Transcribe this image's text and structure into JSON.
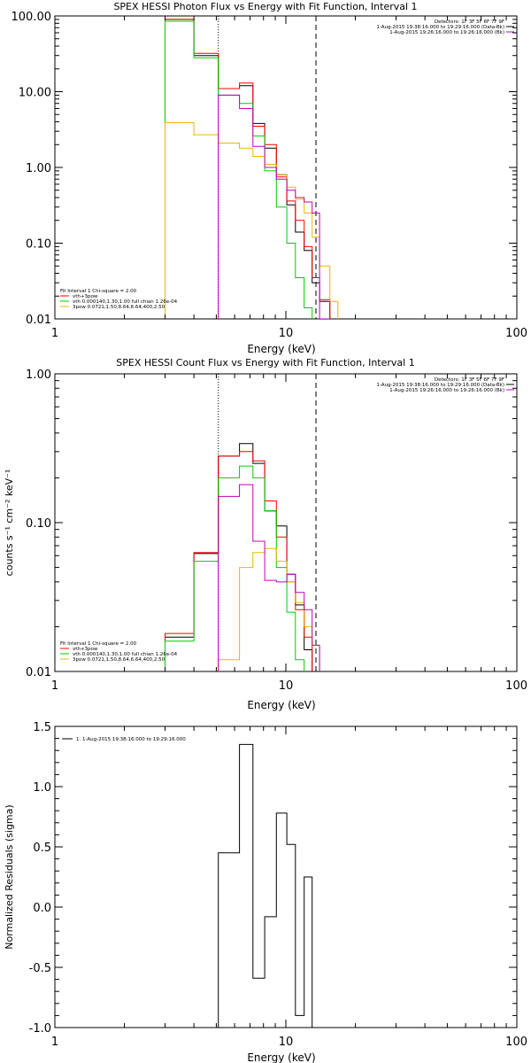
{
  "panels": [
    {
      "title": "SPEX HESSI Photon Flux vs Energy with Fit Function, Interval 1",
      "xlabel": "Energy (keV)",
      "ylabel": "",
      "xticks": [
        {
          "v": 1,
          "label": "1"
        },
        {
          "v": 10,
          "label": "10"
        },
        {
          "v": 100,
          "label": "100"
        }
      ],
      "yticks": [
        {
          "v": 0.01,
          "label": "0.01"
        },
        {
          "v": 0.1,
          "label": "0.10"
        },
        {
          "v": 1,
          "label": "1.00"
        },
        {
          "v": 10,
          "label": "10.00"
        },
        {
          "v": 100,
          "label": "100.00"
        }
      ],
      "legend_tr": [
        {
          "text": "Detectors: 1F 3F 5F 6F 7F 9F",
          "color": ""
        },
        {
          "text": "1-Aug-2015 19:38:16.000 to 19:29:16.000 (Data-Bk)",
          "color": "#000000"
        },
        {
          "text": "1-Aug-2015 19:26:16.000 to 19:26:16.000 (Bk)",
          "color": "#c000c0"
        }
      ],
      "legend_bl": [
        {
          "text": "Fit Interval 1    Chi-square = 2.00",
          "color": ""
        },
        {
          "text": "vth+3pow",
          "color": "#ff0000"
        },
        {
          "text": "vth 0.000140,1.30,1.00   full chian 1.26e-04",
          "color": "#00cc00"
        },
        {
          "text": "3pow 0.0721,1.50,8.64,6.64,400,2.50",
          "color": "#e6b800"
        }
      ]
    },
    {
      "title": "SPEX HESSI Count Flux vs Energy with Fit Function, Interval 1",
      "xlabel": "Energy (keV)",
      "ylabel": "counts s⁻¹ cm⁻² keV⁻¹",
      "xticks": [
        {
          "v": 1,
          "label": "1"
        },
        {
          "v": 10,
          "label": "10"
        },
        {
          "v": 100,
          "label": "100"
        }
      ],
      "yticks": [
        {
          "v": 0.01,
          "label": "0.01"
        },
        {
          "v": 0.1,
          "label": "0.10"
        },
        {
          "v": 1,
          "label": "1.00"
        }
      ],
      "legend_tr": [
        {
          "text": "Detectors: 1F 3F 5F 6F 7F 9F",
          "color": ""
        },
        {
          "text": "1-Aug-2015 19:38:16.000 to 19:29:16.000 (Data-Bk)",
          "color": "#000000"
        },
        {
          "text": "1-Aug-2015 19:26:16.000 to 19:26:16.000 (Bk)",
          "color": "#c000c0"
        }
      ],
      "legend_bl": [
        {
          "text": "Fit Interval 1    Chi-square = 2.00",
          "color": ""
        },
        {
          "text": "vth+3pow",
          "color": "#ff0000"
        },
        {
          "text": "vth 0.000140,1.30,1.00   full chian 1.26e-04",
          "color": "#00cc00"
        },
        {
          "text": "3pow 0.0721,1.50,8.64,6.64,400,2.50",
          "color": "#e6b800"
        }
      ]
    },
    {
      "title": "",
      "xlabel": "Energy (keV)",
      "ylabel": "Normalized Residuals (sigma)",
      "xticks": [
        {
          "v": 1,
          "label": "1"
        },
        {
          "v": 10,
          "label": "10"
        },
        {
          "v": 100,
          "label": "100"
        }
      ],
      "yticks": [
        {
          "v": -1,
          "label": "-1.0"
        },
        {
          "v": -0.5,
          "label": "-0.5"
        },
        {
          "v": 0,
          "label": "0.0"
        },
        {
          "v": 0.5,
          "label": "0.5"
        },
        {
          "v": 1,
          "label": "1.0"
        },
        {
          "v": 1.5,
          "label": "1.5"
        }
      ],
      "legend_tl": [
        {
          "text": "1.  1-Aug-2015 19:38:16.000 to 19:29:16.000",
          "color": "#000000"
        }
      ]
    }
  ],
  "chart_data": [
    {
      "type": "line",
      "title": "SPEX HESSI Photon Flux vs Energy with Fit Function, Interval 1",
      "xlabel": "Energy (keV)",
      "ylabel": "",
      "xscale": "log",
      "yscale": "log",
      "xlim": [
        1,
        100
      ],
      "ylim": [
        0.01,
        100
      ],
      "vlines": [
        {
          "x": 5.1,
          "style": "dotted",
          "color": "#000000"
        },
        {
          "x": 13.5,
          "style": "dashed",
          "color": "#000000"
        }
      ],
      "edges": [
        3.0,
        4.0,
        5.1,
        6.3,
        7.2,
        8.1,
        9.1,
        10.1,
        11.0,
        12.0,
        13.0,
        14.0,
        15.5,
        16.8
      ],
      "series": [
        {
          "name": "Data-Bk",
          "color": "#000000",
          "values": [
            90,
            30,
            11,
            12,
            3.8,
            1.8,
            0.8,
            0.32,
            0.14,
            0.08,
            0.03,
            0.017,
            null
          ]
        },
        {
          "name": "vth+3pow",
          "color": "#ff0000",
          "values": [
            90,
            32,
            11,
            13,
            3.5,
            2.0,
            0.75,
            0.36,
            0.2,
            0.09,
            0.035,
            0.018,
            null
          ]
        },
        {
          "name": "vth",
          "color": "#00cc00",
          "values": [
            85,
            28,
            9,
            7,
            2.6,
            0.9,
            0.3,
            0.1,
            0.035,
            0.014,
            null,
            null,
            null
          ]
        },
        {
          "name": "3pow",
          "color": "#e6b800",
          "values": [
            3.9,
            2.7,
            2.1,
            1.8,
            1.4,
            1.1,
            0.8,
            0.55,
            0.38,
            0.25,
            0.12,
            0.05,
            0.017
          ]
        },
        {
          "name": "Bk",
          "color": "#c000c0",
          "values": [
            null,
            null,
            9,
            6,
            1.9,
            1.0,
            0.7,
            0.5,
            0.4,
            0.35,
            0.25,
            0.01,
            null
          ]
        }
      ]
    },
    {
      "type": "line",
      "title": "SPEX HESSI Count Flux vs Energy with Fit Function, Interval 1",
      "xlabel": "Energy (keV)",
      "ylabel": "counts s⁻¹ cm⁻² keV⁻¹",
      "xscale": "log",
      "yscale": "log",
      "xlim": [
        1,
        100
      ],
      "ylim": [
        0.01,
        1
      ],
      "vlines": [
        {
          "x": 5.1,
          "style": "dotted",
          "color": "#000000"
        },
        {
          "x": 13.5,
          "style": "dashed",
          "color": "#000000"
        }
      ],
      "edges": [
        3.0,
        4.0,
        5.1,
        6.3,
        7.2,
        8.1,
        9.1,
        10.1,
        11.0,
        12.0,
        13.0,
        14.0
      ],
      "series": [
        {
          "name": "Data-Bk",
          "color": "#000000",
          "values": [
            0.017,
            0.062,
            0.28,
            0.34,
            0.25,
            0.12,
            0.095,
            0.045,
            0.028,
            0.014,
            0.009
          ]
        },
        {
          "name": "vth+3pow",
          "color": "#ff0000",
          "values": [
            0.018,
            0.063,
            0.28,
            0.3,
            0.26,
            0.14,
            0.08,
            0.04,
            0.026,
            0.017,
            null
          ]
        },
        {
          "name": "vth",
          "color": "#00cc00",
          "values": [
            0.016,
            0.055,
            0.2,
            0.24,
            0.2,
            0.12,
            0.05,
            0.025,
            0.012,
            null,
            null
          ]
        },
        {
          "name": "3pow",
          "color": "#e6b800",
          "values": [
            null,
            null,
            0.012,
            0.05,
            0.063,
            0.067,
            0.055,
            0.04,
            0.029,
            0.02,
            0.015
          ]
        },
        {
          "name": "Bk",
          "color": "#c000c0",
          "values": [
            null,
            null,
            0.15,
            0.18,
            0.075,
            0.041,
            0.04,
            0.045,
            0.034,
            0.026,
            0.015
          ]
        }
      ]
    },
    {
      "type": "line",
      "title": "",
      "xlabel": "Energy (keV)",
      "ylabel": "Normalized Residuals (sigma)",
      "xscale": "log",
      "yscale": "linear",
      "xlim": [
        1,
        100
      ],
      "ylim": [
        -1.0,
        1.5
      ],
      "edges": [
        5.1,
        6.3,
        7.2,
        8.1,
        9.1,
        10.1,
        11.0,
        12.0,
        13.0
      ],
      "series": [
        {
          "name": "1-Aug-2015 19:38:16.000 to 19:29:16.000",
          "color": "#000000",
          "values": [
            0.45,
            1.35,
            -0.59,
            -0.08,
            0.78,
            0.52,
            -0.9,
            0.25
          ]
        }
      ]
    }
  ]
}
